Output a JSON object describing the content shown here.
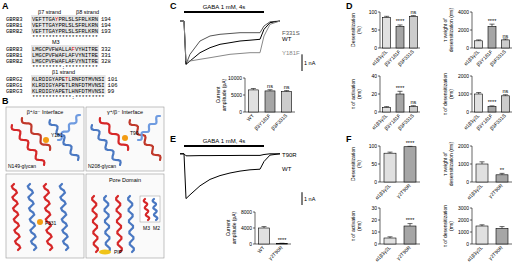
{
  "panel_labels": [
    "A",
    "B",
    "C",
    "D",
    "E",
    "F"
  ],
  "alignments": [
    {
      "labels": [
        "β7 strand",
        "β8 strand"
      ],
      "rows": [
        {
          "name": "GBRB3",
          "seq": "VEFTTGAYPRLSLSFRLKRN",
          "end": 194,
          "highlight": 7
        },
        {
          "name": "GBRB1",
          "seq": "VEFTTGAYPRLSLSFRLKRN",
          "end": 194
        },
        {
          "name": "GBRB2",
          "seq": "VEFTTGAYPRLSLSFRLKRN",
          "end": 193
        }
      ],
      "conservation": "********************"
    },
    {
      "labels": [
        "M3"
      ],
      "rows": [
        {
          "name": "GBRB3",
          "seq": "LMGCPVFWALLAFVYHITRE",
          "end": 332,
          "highlight": 12
        },
        {
          "name": "GBRB1",
          "seq": "LMGCPVFWAFLAFVYNITRE",
          "end": 331
        },
        {
          "name": "GBRB2",
          "seq": "LMGCPVFWAFLAFVYNITRE",
          "end": 328
        }
      ],
      "conservation": "*********:**********"
    },
    {
      "labels": [
        "β1 strand"
      ],
      "rows": [
        {
          "name": "GBRG2",
          "seq": "KLRDIGYAPETLRNFDTMVNSI",
          "end": 101,
          "highlight": 10
        },
        {
          "name": "GBRG1",
          "seq": "KLRDIGYAPETLRNFDTMVNSI",
          "end": 106
        },
        {
          "name": "GBRG3",
          "seq": "KLRDIGYAPETLHNFDTMVNSI",
          "end": 99
        }
      ],
      "conservation": "************:*********"
    }
  ],
  "structure": {
    "interface_left": "β⁺/α⁻ Interface",
    "interface_right": "γ⁺/β⁻ Interface",
    "site_left": "Y181",
    "site_right": "T90",
    "glycan_left": "N149-glycan",
    "glycan_right": "N208-glycan",
    "site_pore": "F331",
    "pore": "Pore Domain",
    "helix_a": "M3",
    "helix_b": "M2",
    "lipid": "PIP"
  },
  "chart_data": [
    {
      "type": "line",
      "application_label": "GABA 1 mM, 4s",
      "application": [
        0.2,
        4.2
      ],
      "scale_bar": 1,
      "scale_bar_label": "1 nA",
      "tick_labels": false,
      "x": [
        0,
        0.2,
        0.3,
        0.5,
        1,
        1.5,
        2,
        2.5,
        3,
        3.5,
        4,
        4.2,
        4.5,
        5
      ],
      "xlim": [
        0,
        6
      ],
      "ylim": [
        -3,
        0.3
      ],
      "series": [
        {
          "name": "F331S",
          "color": "#555555",
          "values": [
            0,
            0,
            -2.6,
            -2.0,
            -1.2,
            -0.9,
            -0.8,
            -0.75,
            -0.7,
            -0.7,
            -0.7,
            -0.3,
            -0.05,
            0
          ]
        },
        {
          "name": "WT",
          "color": "#000000",
          "values": [
            0,
            0,
            -2.6,
            -2.4,
            -1.9,
            -1.6,
            -1.4,
            -1.3,
            -1.2,
            -1.15,
            -1.1,
            -0.5,
            -0.1,
            0
          ]
        },
        {
          "name": "Y181F",
          "color": "#888888",
          "values": [
            0,
            0,
            -2.4,
            -2.4,
            -2.3,
            -2.2,
            -2.1,
            -2.0,
            -1.95,
            -1.9,
            -1.9,
            -0.9,
            -0.2,
            0
          ]
        }
      ]
    },
    {
      "type": "bar",
      "y_label": "Current amplitude (pA)",
      "categories": [
        "WT",
        "β3Y181F",
        "β3F331S"
      ],
      "values": [
        6500,
        6200,
        6000
      ],
      "errors": [
        400,
        350,
        300
      ],
      "annotations": [
        null,
        "ns",
        "ns"
      ],
      "colors": [
        "#e0e0e0",
        "#a6a6a6",
        "#cccccc"
      ],
      "ylim": [
        0,
        10000
      ],
      "yticks": [
        0,
        5000,
        10000
      ]
    },
    {
      "type": "bar",
      "y_label": "Desensitization (%)",
      "categories": [
        "α1β3γ2L",
        "β3Y181F",
        "β3F331S"
      ],
      "values": [
        85,
        60,
        88
      ],
      "errors": [
        3,
        4,
        2
      ],
      "annotations": [
        null,
        "****",
        "ns"
      ],
      "colors": [
        "#e0e0e0",
        "#a6a6a6",
        "#cccccc"
      ],
      "ylim": [
        0,
        100
      ],
      "yticks": [
        0,
        50,
        100
      ]
    },
    {
      "type": "bar",
      "y_label": "τ weight of desensitization (ms)",
      "categories": [
        "α1β3γ2L",
        "β3Y181F",
        "β3F331S"
      ],
      "values": [
        800,
        2400,
        900
      ],
      "errors": [
        100,
        250,
        100
      ],
      "annotations": [
        null,
        "****",
        "ns"
      ],
      "colors": [
        "#e0e0e0",
        "#a6a6a6",
        "#cccccc"
      ],
      "ylim": [
        0,
        4000
      ],
      "yticks": [
        0,
        2000,
        4000
      ]
    },
    {
      "type": "bar",
      "y_label": "τ of activation (ms)",
      "categories": [
        "α1β3γ2L",
        "β3Y181F",
        "β3F331S"
      ],
      "values": [
        5,
        20,
        6
      ],
      "errors": [
        1,
        3,
        1
      ],
      "annotations": [
        null,
        "****",
        "ns"
      ],
      "colors": [
        "#e0e0e0",
        "#a6a6a6",
        "#cccccc"
      ],
      "ylim": [
        0,
        40
      ],
      "yticks": [
        0,
        20,
        40
      ]
    },
    {
      "type": "bar",
      "y_label": "τ of desensitization (ms)",
      "categories": [
        "α1β3γ2L",
        "β3Y181F",
        "β3F331S"
      ],
      "values": [
        1000,
        300,
        900
      ],
      "errors": [
        80,
        40,
        60
      ],
      "annotations": [
        null,
        "****",
        "ns"
      ],
      "colors": [
        "#e0e0e0",
        "#a6a6a6",
        "#cccccc"
      ],
      "ylim": [
        0,
        2000
      ],
      "yticks": [
        0,
        1000,
        2000
      ]
    },
    {
      "type": "line",
      "application_label": "GABA 1 mM, 4s",
      "application": [
        0.2,
        4.2
      ],
      "scale_bar": 1,
      "scale_bar_label": "1 nA",
      "tick_labels": false,
      "x": [
        0,
        0.2,
        0.3,
        0.5,
        1,
        1.5,
        2,
        2.5,
        3,
        3.5,
        4,
        4.2,
        4.5,
        5
      ],
      "xlim": [
        0,
        6
      ],
      "ylim": [
        -4,
        0.3
      ],
      "series": [
        {
          "name": "T90R",
          "color": "#000000",
          "values": [
            0,
            0,
            -0.15,
            -0.15,
            -0.14,
            -0.14,
            -0.13,
            -0.13,
            -0.12,
            -0.12,
            -0.12,
            -0.05,
            0,
            0
          ]
        },
        {
          "name": "WT",
          "color": "#000000",
          "values": [
            0,
            0,
            -3.5,
            -3.2,
            -2.5,
            -2.0,
            -1.7,
            -1.5,
            -1.35,
            -1.25,
            -1.2,
            -0.6,
            -0.1,
            0
          ]
        }
      ]
    },
    {
      "type": "bar",
      "y_label": "Current amplitude (pA)",
      "categories": [
        "WT",
        "γ2T90R"
      ],
      "values": [
        4000,
        150
      ],
      "errors": [
        350,
        40
      ],
      "annotations": [
        null,
        "****"
      ],
      "colors": [
        "#e0e0e0",
        "#a6a6a6"
      ],
      "ylim": [
        0,
        8000
      ],
      "yticks": [
        0,
        4000,
        8000
      ]
    },
    {
      "type": "bar",
      "y_label": "Desensitization (%)",
      "categories": [
        "α1β3γ2L",
        "γ2T90R"
      ],
      "values": [
        80,
        98
      ],
      "errors": [
        3,
        1
      ],
      "annotations": [
        null,
        "****"
      ],
      "colors": [
        "#e0e0e0",
        "#a6a6a6"
      ],
      "ylim": [
        0,
        100
      ],
      "yticks": [
        0,
        50,
        100
      ]
    },
    {
      "type": "bar",
      "y_label": "τ weight of desensitization (ms)",
      "categories": [
        "α1β3γ2L",
        "γ2T90R"
      ],
      "values": [
        1000,
        400
      ],
      "errors": [
        120,
        80
      ],
      "annotations": [
        null,
        "**"
      ],
      "colors": [
        "#e0e0e0",
        "#a6a6a6"
      ],
      "ylim": [
        0,
        2000
      ],
      "yticks": [
        0,
        1000,
        2000
      ]
    },
    {
      "type": "bar",
      "y_label": "τ of activation (ms)",
      "categories": [
        "α1β3γ2L",
        "γ2T90R"
      ],
      "values": [
        5,
        15
      ],
      "errors": [
        1,
        2
      ],
      "annotations": [
        null,
        "****"
      ],
      "colors": [
        "#e0e0e0",
        "#a6a6a6"
      ],
      "ylim": [
        0,
        30
      ],
      "yticks": [
        0,
        10,
        20,
        30
      ]
    },
    {
      "type": "bar",
      "y_label": "τ of desensitization (ms)",
      "categories": [
        "α1β3γ2L",
        "γ2T90R"
      ],
      "values": [
        1500,
        1300
      ],
      "errors": [
        100,
        150
      ],
      "colors": [
        "#e0e0e0",
        "#a6a6a6"
      ],
      "ylim": [
        0,
        3000
      ],
      "yticks": [
        0,
        1000,
        2000,
        3000
      ]
    }
  ]
}
